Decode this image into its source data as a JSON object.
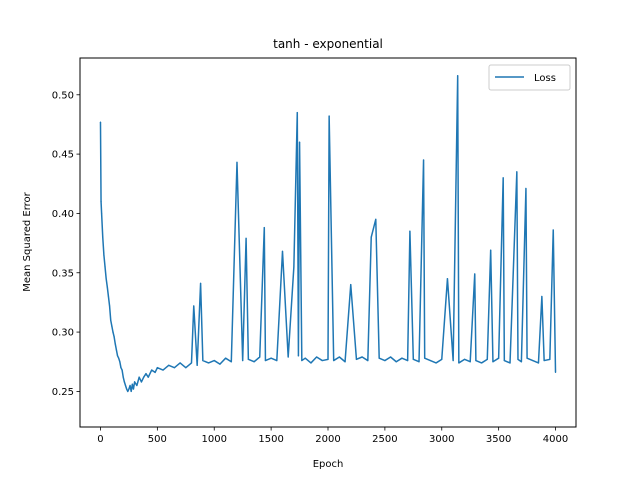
{
  "chart_data": {
    "type": "line",
    "title": "tanh - exponential",
    "xlabel": "Epoch",
    "ylabel": "Mean Squared Error",
    "xlim": [
      -180,
      4180
    ],
    "ylim": [
      0.22,
      0.531
    ],
    "x_ticks": [
      0,
      500,
      1000,
      1500,
      2000,
      2500,
      3000,
      3500,
      4000
    ],
    "y_ticks": [
      0.25,
      0.3,
      0.35,
      0.4,
      0.45,
      0.5
    ],
    "y_tick_labels": [
      "0.25",
      "0.30",
      "0.35",
      "0.40",
      "0.45",
      "0.50"
    ],
    "grid": false,
    "legend_position": "top-right",
    "series": [
      {
        "name": "Loss",
        "color": "#1f77b4",
        "x": [
          0,
          5,
          10,
          20,
          30,
          40,
          50,
          60,
          70,
          80,
          90,
          100,
          110,
          120,
          130,
          140,
          150,
          160,
          170,
          180,
          190,
          200,
          210,
          220,
          230,
          240,
          250,
          260,
          270,
          280,
          290,
          300,
          320,
          340,
          360,
          380,
          400,
          420,
          450,
          480,
          500,
          550,
          600,
          650,
          700,
          750,
          800,
          820,
          850,
          880,
          900,
          950,
          1000,
          1050,
          1100,
          1150,
          1200,
          1250,
          1280,
          1300,
          1350,
          1400,
          1440,
          1450,
          1500,
          1550,
          1600,
          1650,
          1700,
          1730,
          1740,
          1750,
          1770,
          1800,
          1850,
          1900,
          1950,
          2000,
          2010,
          2050,
          2100,
          2150,
          2200,
          2250,
          2300,
          2350,
          2380,
          2420,
          2450,
          2500,
          2550,
          2600,
          2650,
          2700,
          2720,
          2750,
          2800,
          2840,
          2850,
          2900,
          2950,
          3000,
          3050,
          3100,
          3140,
          3150,
          3200,
          3250,
          3290,
          3300,
          3350,
          3400,
          3430,
          3450,
          3500,
          3540,
          3550,
          3600,
          3660,
          3670,
          3700,
          3740,
          3750,
          3800,
          3850,
          3880,
          3900,
          3950,
          3980,
          4000
        ],
        "values": [
          0.477,
          0.41,
          0.4,
          0.38,
          0.365,
          0.355,
          0.345,
          0.338,
          0.33,
          0.322,
          0.31,
          0.305,
          0.3,
          0.296,
          0.29,
          0.285,
          0.28,
          0.278,
          0.275,
          0.27,
          0.268,
          0.262,
          0.258,
          0.255,
          0.252,
          0.25,
          0.252,
          0.255,
          0.25,
          0.256,
          0.252,
          0.258,
          0.255,
          0.262,
          0.258,
          0.262,
          0.265,
          0.262,
          0.268,
          0.266,
          0.27,
          0.268,
          0.272,
          0.27,
          0.274,
          0.27,
          0.274,
          0.322,
          0.272,
          0.341,
          0.276,
          0.274,
          0.276,
          0.273,
          0.278,
          0.275,
          0.443,
          0.276,
          0.379,
          0.277,
          0.275,
          0.279,
          0.388,
          0.276,
          0.278,
          0.276,
          0.368,
          0.279,
          0.355,
          0.485,
          0.28,
          0.46,
          0.276,
          0.278,
          0.274,
          0.279,
          0.276,
          0.277,
          0.482,
          0.276,
          0.279,
          0.275,
          0.34,
          0.277,
          0.279,
          0.276,
          0.38,
          0.395,
          0.278,
          0.276,
          0.279,
          0.275,
          0.278,
          0.276,
          0.385,
          0.277,
          0.275,
          0.445,
          0.278,
          0.276,
          0.274,
          0.277,
          0.345,
          0.276,
          0.516,
          0.274,
          0.277,
          0.275,
          0.349,
          0.276,
          0.274,
          0.277,
          0.369,
          0.275,
          0.278,
          0.43,
          0.276,
          0.274,
          0.435,
          0.277,
          0.275,
          0.421,
          0.278,
          0.276,
          0.274,
          0.33,
          0.276,
          0.277,
          0.386,
          0.266
        ]
      }
    ]
  }
}
